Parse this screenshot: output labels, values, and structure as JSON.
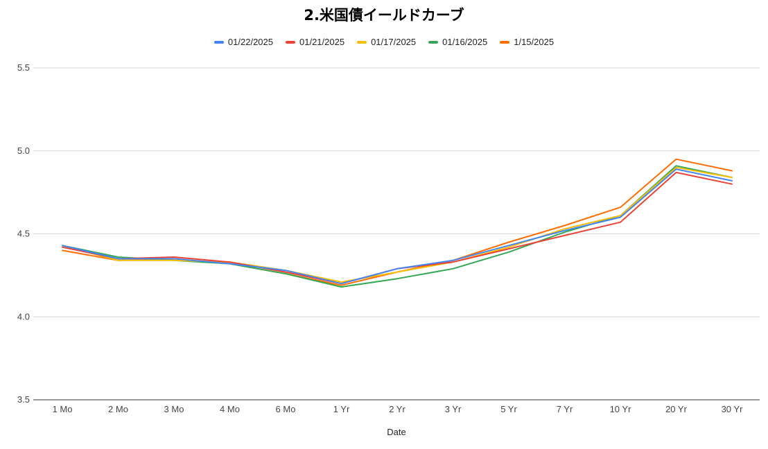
{
  "chart_data": {
    "type": "line",
    "title": "2.米国債イールドカーブ",
    "xlabel": "Date",
    "ylabel": "",
    "ylim": [
      3.5,
      5.5
    ],
    "yticks": [
      "3.5",
      "4.0",
      "4.5",
      "5.0",
      "5.5"
    ],
    "grid": true,
    "legend_position": "top",
    "categories": [
      "1 Mo",
      "2 Mo",
      "3 Mo",
      "4 Mo",
      "6 Mo",
      "1 Yr",
      "2 Yr",
      "3 Yr",
      "5 Yr",
      "7 Yr",
      "10 Yr",
      "20 Yr",
      "30 Yr"
    ],
    "series": [
      {
        "name": "01/22/2025",
        "color": "#4285F4",
        "values": [
          4.43,
          4.35,
          4.35,
          4.32,
          4.28,
          4.2,
          4.29,
          4.34,
          4.43,
          4.52,
          4.6,
          4.89,
          4.82
        ]
      },
      {
        "name": "01/21/2025",
        "color": "#EA4335",
        "values": [
          4.42,
          4.35,
          4.36,
          4.33,
          4.27,
          4.2,
          4.29,
          4.33,
          4.41,
          4.49,
          4.57,
          4.87,
          4.8
        ]
      },
      {
        "name": "01/17/2025",
        "color": "#FBBC04",
        "values": [
          4.43,
          4.34,
          4.34,
          4.33,
          4.28,
          4.21,
          4.27,
          4.33,
          4.42,
          4.53,
          4.61,
          4.9,
          4.84
        ]
      },
      {
        "name": "01/16/2025",
        "color": "#34A853",
        "values": [
          4.43,
          4.36,
          4.34,
          4.32,
          4.26,
          4.18,
          4.23,
          4.29,
          4.39,
          4.51,
          4.61,
          4.91,
          4.84
        ]
      },
      {
        "name": "1/15/2025",
        "color": "#FF6D01",
        "values": [
          4.4,
          4.34,
          4.35,
          4.32,
          4.26,
          4.19,
          4.27,
          4.34,
          4.45,
          4.55,
          4.66,
          4.95,
          4.88
        ]
      }
    ]
  }
}
